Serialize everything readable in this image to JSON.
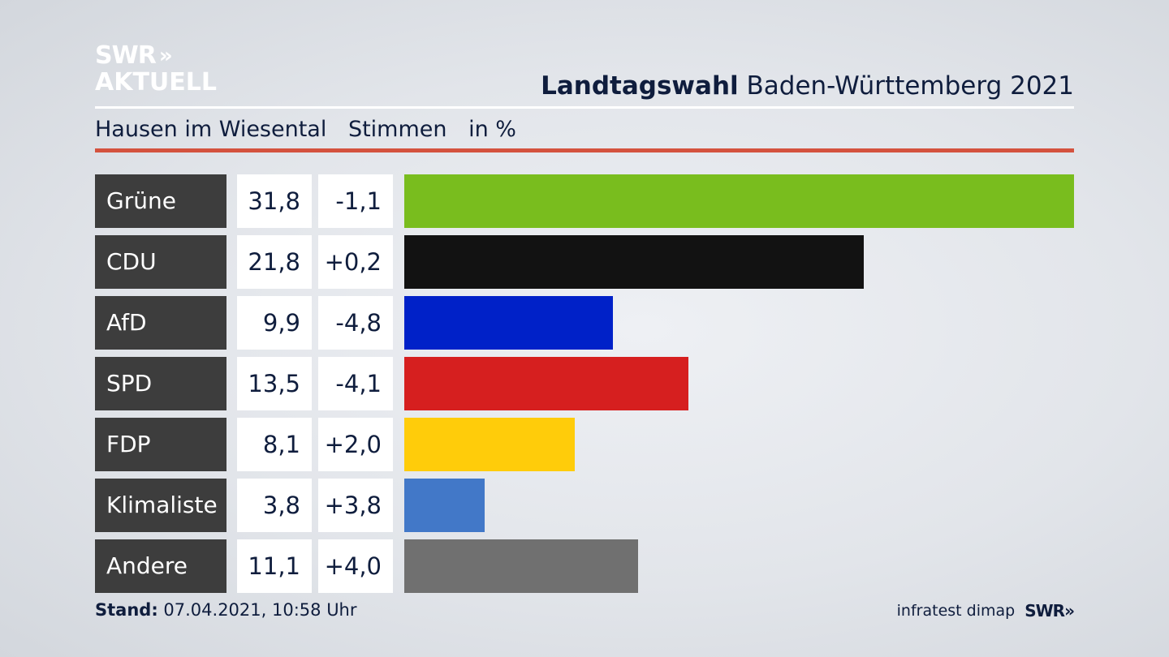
{
  "logo": {
    "line1": "SWR",
    "line2": "AKTUELL",
    "chevrons": "»"
  },
  "header": {
    "title_bold": "Landtagswahl",
    "title_rest": "Baden-Württemberg 2021"
  },
  "subheader": {
    "place": "Hausen im Wiesental",
    "measure": "Stimmen",
    "unit": "in %"
  },
  "chart_data": {
    "type": "bar",
    "orientation": "horizontal",
    "categories": [
      "Grüne",
      "CDU",
      "AfD",
      "SPD",
      "FDP",
      "Klimaliste",
      "Andere"
    ],
    "values": [
      31.8,
      21.8,
      9.9,
      13.5,
      8.1,
      3.8,
      11.1
    ],
    "value_labels": [
      "31,8",
      "21,8",
      "9,9",
      "13,5",
      "8,1",
      "3,8",
      "11,1"
    ],
    "change_labels": [
      "-1,1",
      "+0,2",
      "-4,8",
      "-4,1",
      "+2,0",
      "+3,8",
      "+4,0"
    ],
    "colors": [
      "#79bd1e",
      "#121212",
      "#0021c8",
      "#d61f1f",
      "#ffcc0a",
      "#4278c8",
      "#707070"
    ],
    "xlim": [
      0,
      31.8
    ],
    "grid": false,
    "legend": "none"
  },
  "footer": {
    "stand_label": "Stand:",
    "stand_value": "07.04.2021, 10:58 Uhr",
    "source": "infratest dimap",
    "brand": "SWR",
    "brand_chevrons": "»"
  }
}
